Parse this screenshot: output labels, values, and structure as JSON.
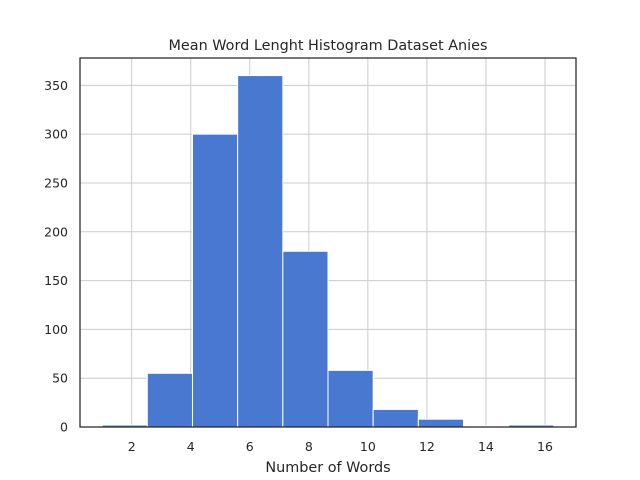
{
  "chart_data": {
    "type": "bar",
    "title": "Mean Word Lenght Histogram Dataset Anies",
    "xlabel": "Number of Words",
    "ylabel": "",
    "bin_edges": [
      1.0,
      2.53,
      4.06,
      5.59,
      7.12,
      8.65,
      10.18,
      11.71,
      13.24,
      14.77,
      16.3
    ],
    "values": [
      2,
      55,
      300,
      360,
      180,
      58,
      18,
      8,
      1,
      2
    ],
    "xlim": [
      0.25,
      17.05
    ],
    "ylim": [
      0,
      378
    ],
    "xticks": [
      2,
      4,
      6,
      8,
      10,
      12,
      14,
      16
    ],
    "yticks": [
      0,
      50,
      100,
      150,
      200,
      250,
      300,
      350
    ],
    "bar_color": "#4878d0",
    "grid": true
  }
}
